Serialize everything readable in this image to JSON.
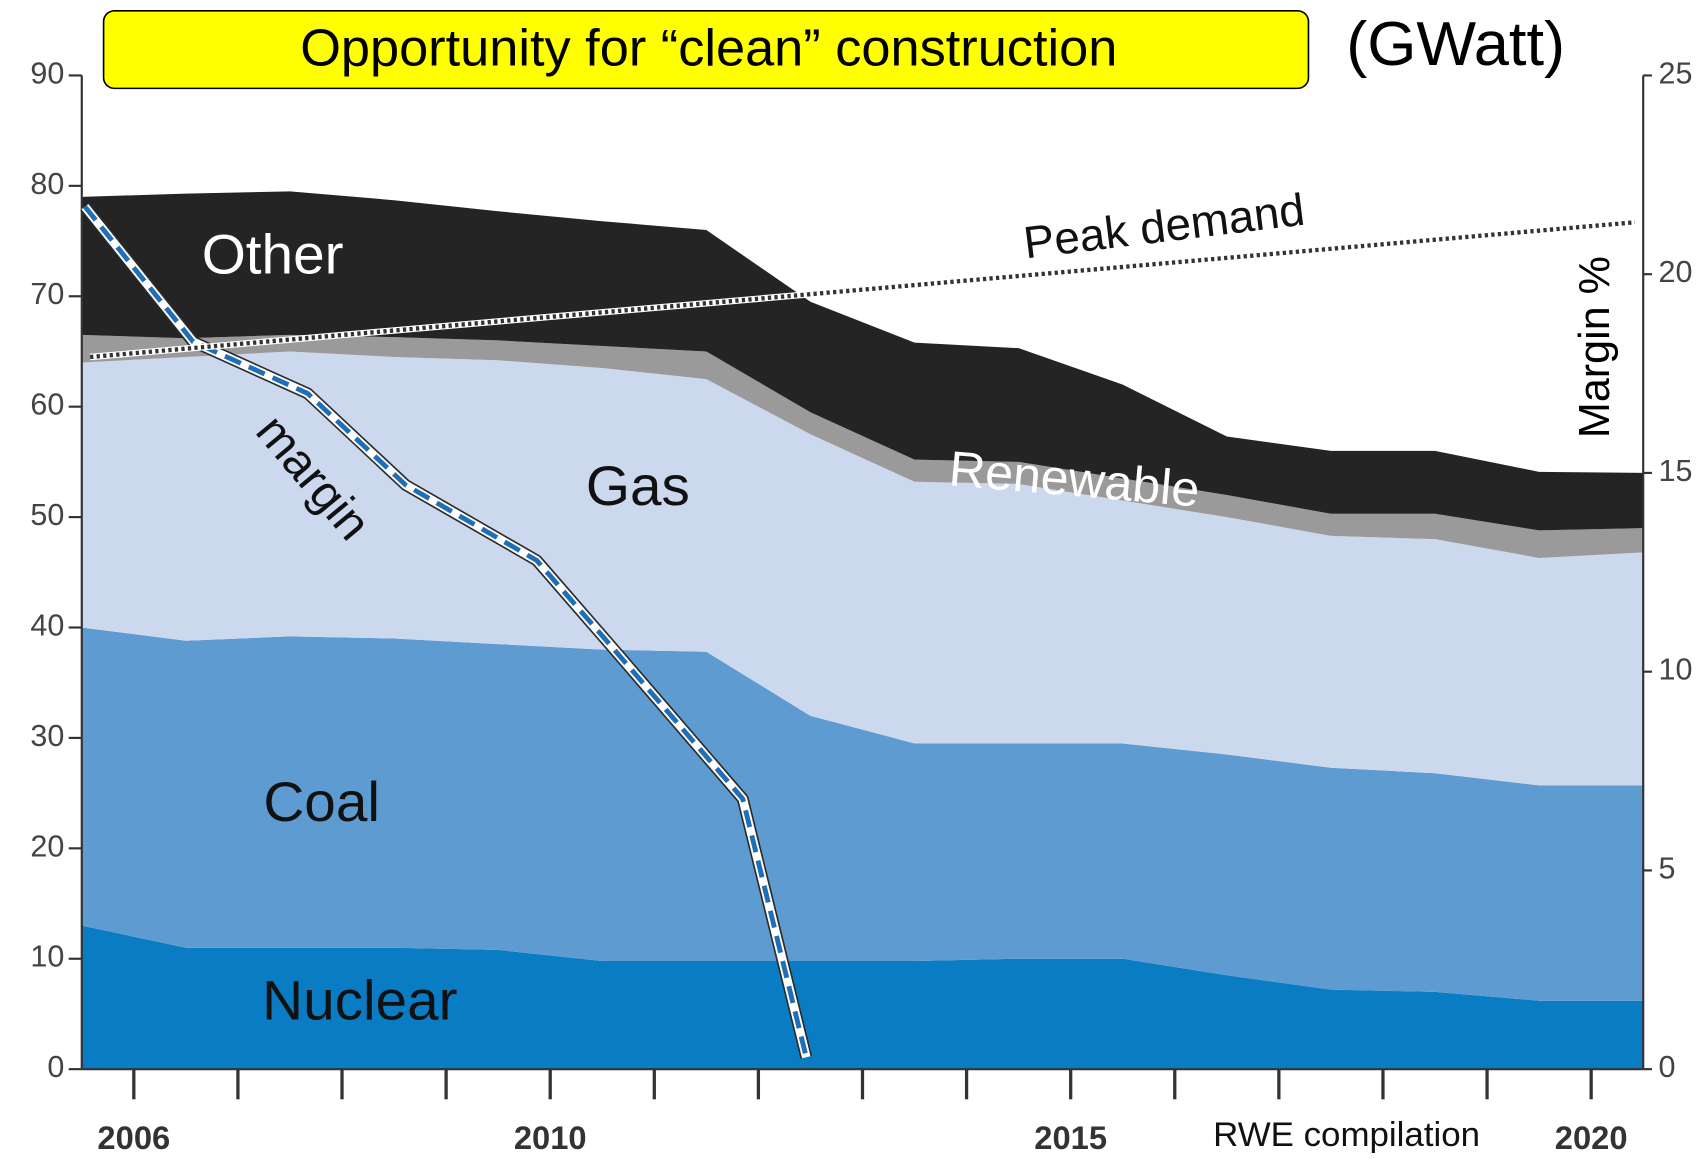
{
  "chart_data": {
    "type": "area",
    "title": "Opportunity for “clean” construction",
    "unit_label": "(GWatt)",
    "y2_label": "Margin %",
    "source": "RWE compilation",
    "x": [
      2005.5,
      2006.5,
      2007.5,
      2008.5,
      2009.5,
      2010.5,
      2011.5,
      2012.5,
      2013.5,
      2014.5,
      2015.5,
      2016.5,
      2017.5,
      2018.5,
      2019.5,
      2020.5
    ],
    "xlim": [
      2005.5,
      2020.5
    ],
    "xticks": [
      2006,
      2007,
      2008,
      2009,
      2010,
      2011,
      2012,
      2013,
      2014,
      2015,
      2016,
      2017,
      2018,
      2019,
      2020
    ],
    "xlabels": [
      2006,
      2010,
      2015,
      2020
    ],
    "ylim": [
      0,
      90
    ],
    "yticks": [
      0,
      10,
      20,
      30,
      40,
      50,
      60,
      70,
      80,
      90
    ],
    "y2lim": [
      0,
      25
    ],
    "y2ticks": [
      0,
      5,
      10,
      15,
      20,
      25
    ],
    "stacked": true,
    "series": [
      {
        "name": "Nuclear",
        "color": "#0a7cc4",
        "values": [
          13,
          11,
          11,
          11,
          10.8,
          9.8,
          9.8,
          9.8,
          9.8,
          10,
          10,
          8.5,
          7.2,
          7,
          6.2,
          6.2
        ]
      },
      {
        "name": "Coal",
        "color": "#5e9bd0",
        "values": [
          27,
          27.8,
          28.2,
          28,
          27.7,
          28.2,
          28,
          22.2,
          19.7,
          19.5,
          19.5,
          20,
          20.1,
          19.8,
          19.5,
          19.5
        ]
      },
      {
        "name": "Gas",
        "color": "#ccd8ee",
        "values": [
          24,
          25.7,
          25.8,
          25.5,
          25.7,
          25.5,
          24.7,
          25.5,
          23.7,
          23.5,
          22,
          21.5,
          21,
          21.2,
          20.6,
          21.1
        ]
      },
      {
        "name": "Renewable",
        "color": "#9a9a9a",
        "values": [
          2.5,
          1.7,
          1.5,
          1.8,
          1.8,
          2,
          2.5,
          2,
          2,
          2,
          2,
          2,
          2,
          2.3,
          2.5,
          2.2
        ]
      },
      {
        "name": "Other",
        "color": "#242424",
        "values": [
          12.5,
          13.1,
          13,
          12.4,
          11.7,
          11.3,
          11,
          10,
          10.6,
          10.3,
          8.5,
          5.3,
          5.7,
          5.7,
          5.3,
          5
        ]
      }
    ],
    "lines": [
      {
        "name": "margin",
        "color": "#1f6fb8",
        "style": "dashed",
        "axis": "y2",
        "x": [
          2005.53,
          2006.57,
          2007.67,
          2008.61,
          2009.87,
          2010.6,
          2011.85,
          2012.46
        ],
        "values": [
          21.7,
          18.3,
          17.0,
          14.7,
          12.8,
          10.6,
          6.8,
          0.3
        ]
      },
      {
        "name": "Peak demand",
        "color": "#333333",
        "style": "dotted",
        "axis": "y",
        "x": [
          2005.58,
          2020.42
        ],
        "values": [
          64.5,
          76.7
        ]
      }
    ]
  }
}
